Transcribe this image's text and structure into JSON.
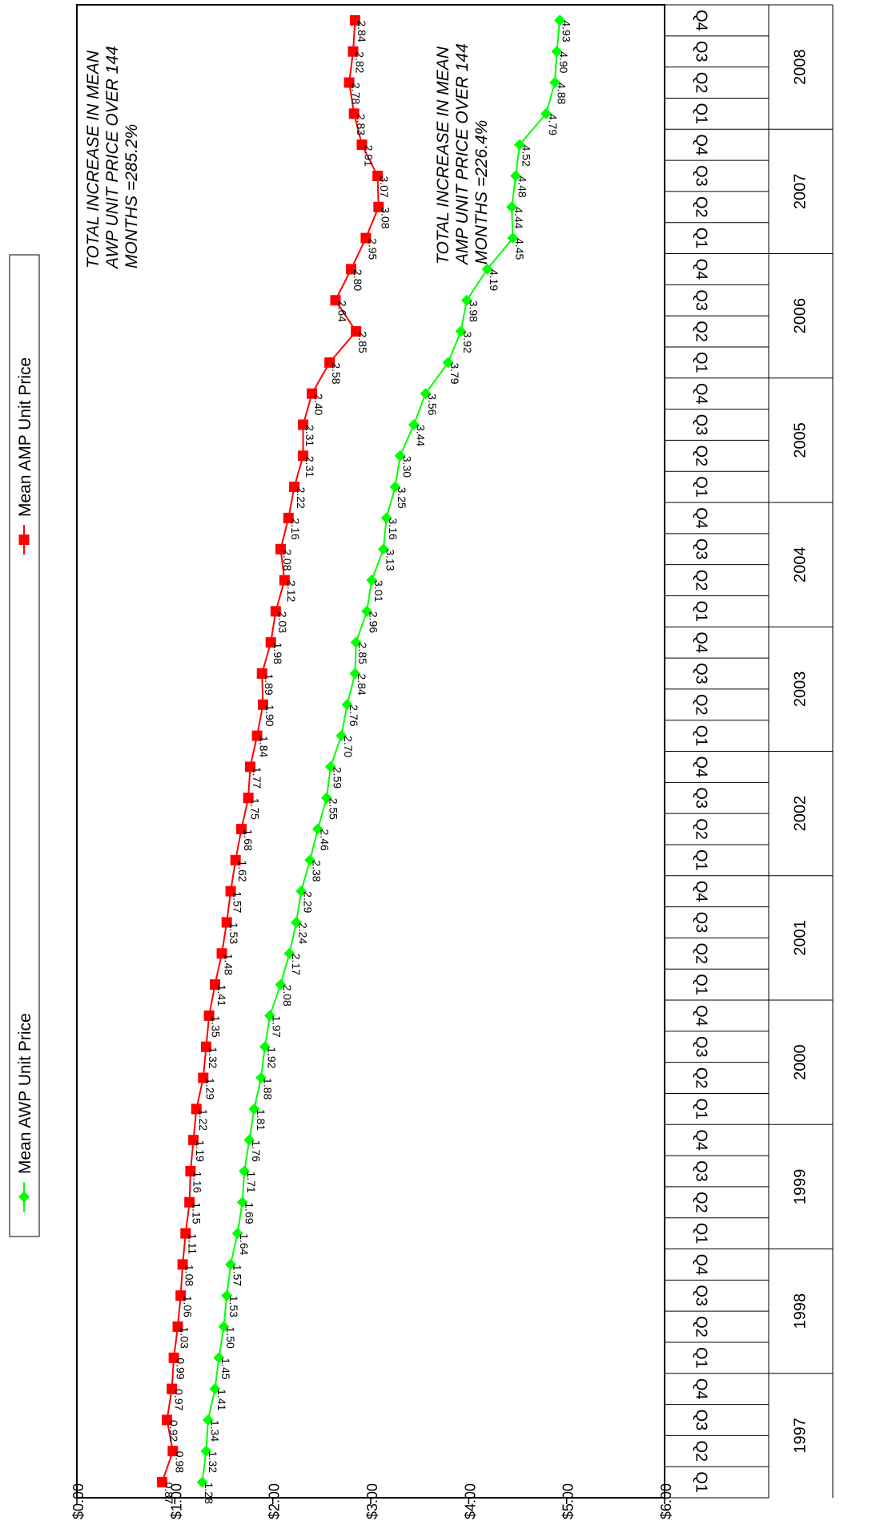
{
  "chart_data": {
    "type": "line",
    "orientation": "rotated-90-clockwise",
    "title": "",
    "xlabel": "",
    "ylabel": "",
    "ylim": [
      0,
      6
    ],
    "y_ticks": [
      "$0.00",
      "$1.00",
      "$2.00",
      "$3.00",
      "$4.00",
      "$5.00",
      "$6.00"
    ],
    "years": [
      "1997",
      "1998",
      "1999",
      "2000",
      "2001",
      "2002",
      "2003",
      "2004",
      "2005",
      "2006",
      "2007",
      "2008"
    ],
    "quarter_labels": [
      "Q1",
      "Q2",
      "Q3",
      "Q4"
    ],
    "grid": false,
    "legend_position": "top",
    "series": [
      {
        "name": "Mean AWP Unit Price",
        "color": "#00ff00",
        "marker": "diamond",
        "values": [
          1.28,
          1.32,
          1.34,
          1.41,
          1.45,
          1.5,
          1.53,
          1.57,
          1.64,
          1.69,
          1.71,
          1.76,
          1.81,
          1.88,
          1.92,
          1.97,
          2.08,
          2.17,
          2.24,
          2.29,
          2.38,
          2.46,
          2.55,
          2.59,
          2.7,
          2.76,
          2.84,
          2.85,
          2.96,
          3.01,
          3.13,
          3.16,
          3.25,
          3.3,
          3.44,
          3.56,
          3.79,
          3.92,
          3.98,
          4.19,
          4.45,
          4.44,
          4.48,
          4.52,
          4.79,
          4.88,
          4.9,
          4.93
        ],
        "labels": [
          "1.28",
          "1.32",
          "1.34",
          "1.41",
          "1.45",
          "1.50",
          "1.53",
          "1.57",
          "1.64",
          "1.69",
          "1.71",
          "1.76",
          "1.81",
          "1.88",
          "1.92",
          "1.97",
          "2.08",
          "2.17",
          "2.24",
          "2.29",
          "2.38",
          "2.46",
          "2.55",
          "2.59",
          "2.70",
          "2.76",
          "2.84",
          "2.85",
          "2.96",
          "3.01",
          "3.13",
          "3.16",
          "3.25",
          "3.30",
          "3.44",
          "3.56",
          "3.79",
          "3.92",
          "3.98",
          "4.19",
          "4.45",
          "4.44",
          "4.48",
          "4.52",
          "4.79",
          "4.88",
          "4.90",
          "4.93"
        ]
      },
      {
        "name": "Mean AMP Unit Price",
        "color": "#ff0000",
        "marker": "square",
        "values": [
          0.87,
          0.98,
          0.92,
          0.97,
          0.99,
          1.03,
          1.06,
          1.08,
          1.11,
          1.15,
          1.16,
          1.19,
          1.22,
          1.29,
          1.32,
          1.35,
          1.41,
          1.48,
          1.53,
          1.57,
          1.62,
          1.68,
          1.75,
          1.77,
          1.84,
          1.9,
          1.89,
          1.98,
          2.03,
          2.12,
          2.08,
          2.16,
          2.22,
          2.31,
          2.31,
          2.4,
          2.58,
          2.85,
          2.64,
          2.8,
          2.95,
          3.08,
          3.07,
          2.91,
          2.83,
          2.78,
          2.82,
          2.84
        ],
        "labels": [
          "0.87",
          "0.98",
          "0.92",
          "0.97",
          "0.99",
          "1.03",
          "1.06",
          "1.08",
          "1.11",
          "1.15",
          "1.16",
          "1.19",
          "1.22",
          "1.29",
          "1.32",
          "1.35",
          "1.41",
          "1.48",
          "1.53",
          "1.57",
          "1.62",
          "1.68",
          "1.75",
          "1.77",
          "1.84",
          "1.90",
          "1.89",
          "1.98",
          "2.03",
          "2.12",
          "2.08",
          "2.16",
          "2.22",
          "2.31",
          "2.31",
          "2.40",
          "2.58",
          "2.85",
          "2.64",
          "2.80",
          "2.95",
          "3.08",
          "3.07",
          "2.91",
          "2.83",
          "2.78",
          "2.82",
          "2.84"
        ]
      }
    ],
    "annotations": [
      {
        "lines": [
          "TOTAL INCREASE IN MEAN",
          "AWP UNIT PRICE OVER 144",
          "MONTHS =285.2%"
        ]
      },
      {
        "lines": [
          "TOTAL INCREASE IN MEAN",
          "AMP UNIT PRICE OVER 144",
          "MONTHS =226.4%"
        ]
      }
    ]
  }
}
